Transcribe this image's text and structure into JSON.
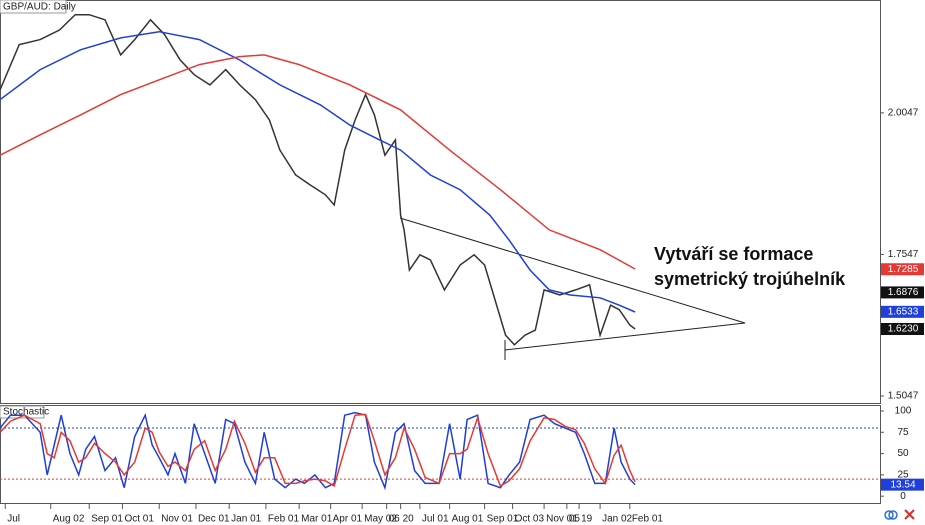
{
  "chart_data": [
    {
      "type": "line",
      "title": "GBP/AUD: Daily",
      "annotation": [
        "Vytváří se formace",
        "symetrický trojúhelník"
      ],
      "xlim": [
        0,
        503
      ],
      "ylim": [
        1.4923,
        2.204
      ],
      "yticks": [
        2.0047,
        1.7547,
        1.5047
      ],
      "xticks": [
        {
          "value": 3,
          "label": "Jul"
        },
        {
          "value": 29,
          "label": "Aug 02"
        },
        {
          "value": 51,
          "label": "Sep 01"
        },
        {
          "value": 70,
          "label": "Oct 01"
        },
        {
          "value": 91,
          "label": "Nov 01"
        },
        {
          "value": 112,
          "label": "Dec 01"
        },
        {
          "value": 131,
          "label": "Jan 01"
        },
        {
          "value": 152,
          "label": "Feb 01"
        },
        {
          "value": 171,
          "label": "Mar 01"
        },
        {
          "value": 189,
          "label": "Apr 01"
        },
        {
          "value": 207,
          "label": "May 02"
        },
        {
          "value": 221,
          "label": "06"
        },
        {
          "value": 229,
          "label": "20"
        },
        {
          "value": 240,
          "label": "Jul 01"
        },
        {
          "value": 257,
          "label": "Aug 01"
        },
        {
          "value": 277,
          "label": "Sep 01"
        },
        {
          "value": 293,
          "label": "Oct 03"
        },
        {
          "value": 311,
          "label": "Nov 01"
        },
        {
          "value": 324,
          "label": "05"
        },
        {
          "value": 331,
          "label": "19"
        },
        {
          "value": 343,
          "label": "Jan 02"
        },
        {
          "value": 360,
          "label": "Feb 01"
        }
      ],
      "price_tags": [
        {
          "value": 1.7285,
          "color": "#e53935"
        },
        {
          "value": 1.6876,
          "color": "#111111"
        },
        {
          "value": 1.6533,
          "color": "#1e3fd8"
        },
        {
          "value": 1.623,
          "label": "1.6230",
          "color": "#111111"
        }
      ],
      "series": [
        {
          "color": "#333333",
          "x": [
            0,
            11,
            23,
            34,
            43,
            51,
            60,
            69,
            77,
            86,
            94,
            103,
            111,
            120,
            129,
            137,
            146,
            154,
            160,
            169,
            177,
            186,
            191,
            197,
            203,
            209,
            214,
            220,
            226,
            229,
            231,
            234,
            240,
            246,
            254,
            263,
            271,
            277,
            283,
            289,
            294,
            300,
            306,
            311,
            320,
            329,
            337,
            343,
            349,
            354,
            360,
            363
          ],
          "values": [
            2.045,
            2.125,
            2.134,
            2.151,
            2.178,
            2.178,
            2.169,
            2.107,
            2.134,
            2.169,
            2.143,
            2.098,
            2.072,
            2.054,
            2.081,
            2.054,
            2.028,
            1.992,
            1.939,
            1.895,
            1.878,
            1.86,
            1.842,
            1.939,
            1.992,
            2.037,
            2.001,
            1.93,
            1.957,
            1.824,
            1.798,
            1.727,
            1.754,
            1.745,
            1.692,
            1.736,
            1.754,
            1.736,
            1.674,
            1.612,
            1.595,
            1.612,
            1.621,
            1.692,
            1.683,
            1.692,
            1.701,
            1.612,
            1.665,
            1.657,
            1.63,
            1.623
          ]
        },
        {
          "color": "#1e3fd8",
          "x": [
            0,
            23,
            46,
            69,
            91,
            114,
            137,
            160,
            183,
            200,
            217,
            229,
            246,
            263,
            280,
            291,
            303,
            314,
            326,
            343,
            354,
            363
          ],
          "values": [
            2.028,
            2.081,
            2.116,
            2.137,
            2.148,
            2.134,
            2.098,
            2.054,
            2.019,
            1.983,
            1.957,
            1.939,
            1.895,
            1.869,
            1.824,
            1.78,
            1.727,
            1.692,
            1.683,
            1.678,
            1.665,
            1.653
          ]
        },
        {
          "color": "#e53935",
          "x": [
            0,
            23,
            46,
            69,
            91,
            114,
            137,
            151,
            171,
            200,
            229,
            257,
            286,
            314,
            343,
            363
          ],
          "values": [
            1.93,
            1.966,
            2.001,
            2.037,
            2.063,
            2.09,
            2.104,
            2.107,
            2.09,
            2.054,
            2.01,
            1.939,
            1.869,
            1.798,
            1.763,
            1.729
          ]
        }
      ]
    },
    {
      "type": "line",
      "title": "Stochastic",
      "xlim": [
        0,
        503
      ],
      "ylim": [
        -8,
        107
      ],
      "yticks": [
        100,
        75,
        50,
        25,
        0
      ],
      "levels": [
        {
          "value": 80,
          "color": "#1e3fd8"
        },
        {
          "value": 20,
          "color": "#e53935"
        }
      ],
      "price_tags": [
        {
          "value": 13.54,
          "color": "#1e3fd8"
        }
      ],
      "series": [
        {
          "color": "#1e3fd8",
          "x": [
            0,
            6,
            14,
            23,
            27,
            31,
            35,
            40,
            45,
            49,
            54,
            60,
            66,
            71,
            77,
            83,
            87,
            91,
            96,
            100,
            106,
            111,
            117,
            123,
            129,
            134,
            140,
            146,
            151,
            157,
            163,
            169,
            174,
            180,
            186,
            191,
            197,
            203,
            209,
            214,
            220,
            226,
            231,
            237,
            243,
            251,
            257,
            263,
            267,
            273,
            279,
            286,
            291,
            297,
            303,
            311,
            317,
            323,
            329,
            334,
            340,
            346,
            351,
            355,
            360,
            363
          ],
          "values": [
            80,
            95,
            95,
            75,
            25,
            60,
            95,
            50,
            25,
            55,
            70,
            30,
            45,
            10,
            70,
            95,
            60,
            45,
            25,
            50,
            15,
            85,
            50,
            15,
            90,
            85,
            40,
            15,
            75,
            20,
            10,
            20,
            15,
            25,
            10,
            15,
            95,
            98,
            95,
            40,
            10,
            75,
            85,
            30,
            15,
            15,
            85,
            20,
            90,
            95,
            15,
            10,
            25,
            40,
            90,
            95,
            85,
            80,
            75,
            50,
            15,
            15,
            80,
            40,
            20,
            13.54
          ]
        },
        {
          "color": "#e53935",
          "x": [
            0,
            6,
            14,
            23,
            27,
            31,
            35,
            40,
            45,
            49,
            54,
            60,
            66,
            71,
            77,
            83,
            87,
            91,
            96,
            100,
            106,
            111,
            117,
            123,
            129,
            134,
            140,
            146,
            151,
            157,
            163,
            169,
            174,
            180,
            186,
            191,
            197,
            203,
            209,
            214,
            220,
            226,
            231,
            237,
            243,
            251,
            257,
            263,
            267,
            273,
            279,
            286,
            291,
            297,
            303,
            311,
            317,
            323,
            329,
            334,
            340,
            346,
            351,
            355,
            360,
            363
          ],
          "values": [
            75,
            88,
            95,
            85,
            50,
            45,
            75,
            65,
            40,
            45,
            62,
            50,
            40,
            25,
            40,
            80,
            75,
            52,
            35,
            40,
            30,
            55,
            65,
            30,
            55,
            88,
            62,
            28,
            45,
            45,
            15,
            15,
            18,
            20,
            18,
            12,
            55,
            95,
            96,
            65,
            25,
            45,
            80,
            55,
            22,
            15,
            50,
            50,
            55,
            92,
            50,
            12,
            18,
            32,
            65,
            92,
            90,
            82,
            78,
            62,
            32,
            15,
            48,
            60,
            30,
            17
          ]
        }
      ]
    }
  ]
}
